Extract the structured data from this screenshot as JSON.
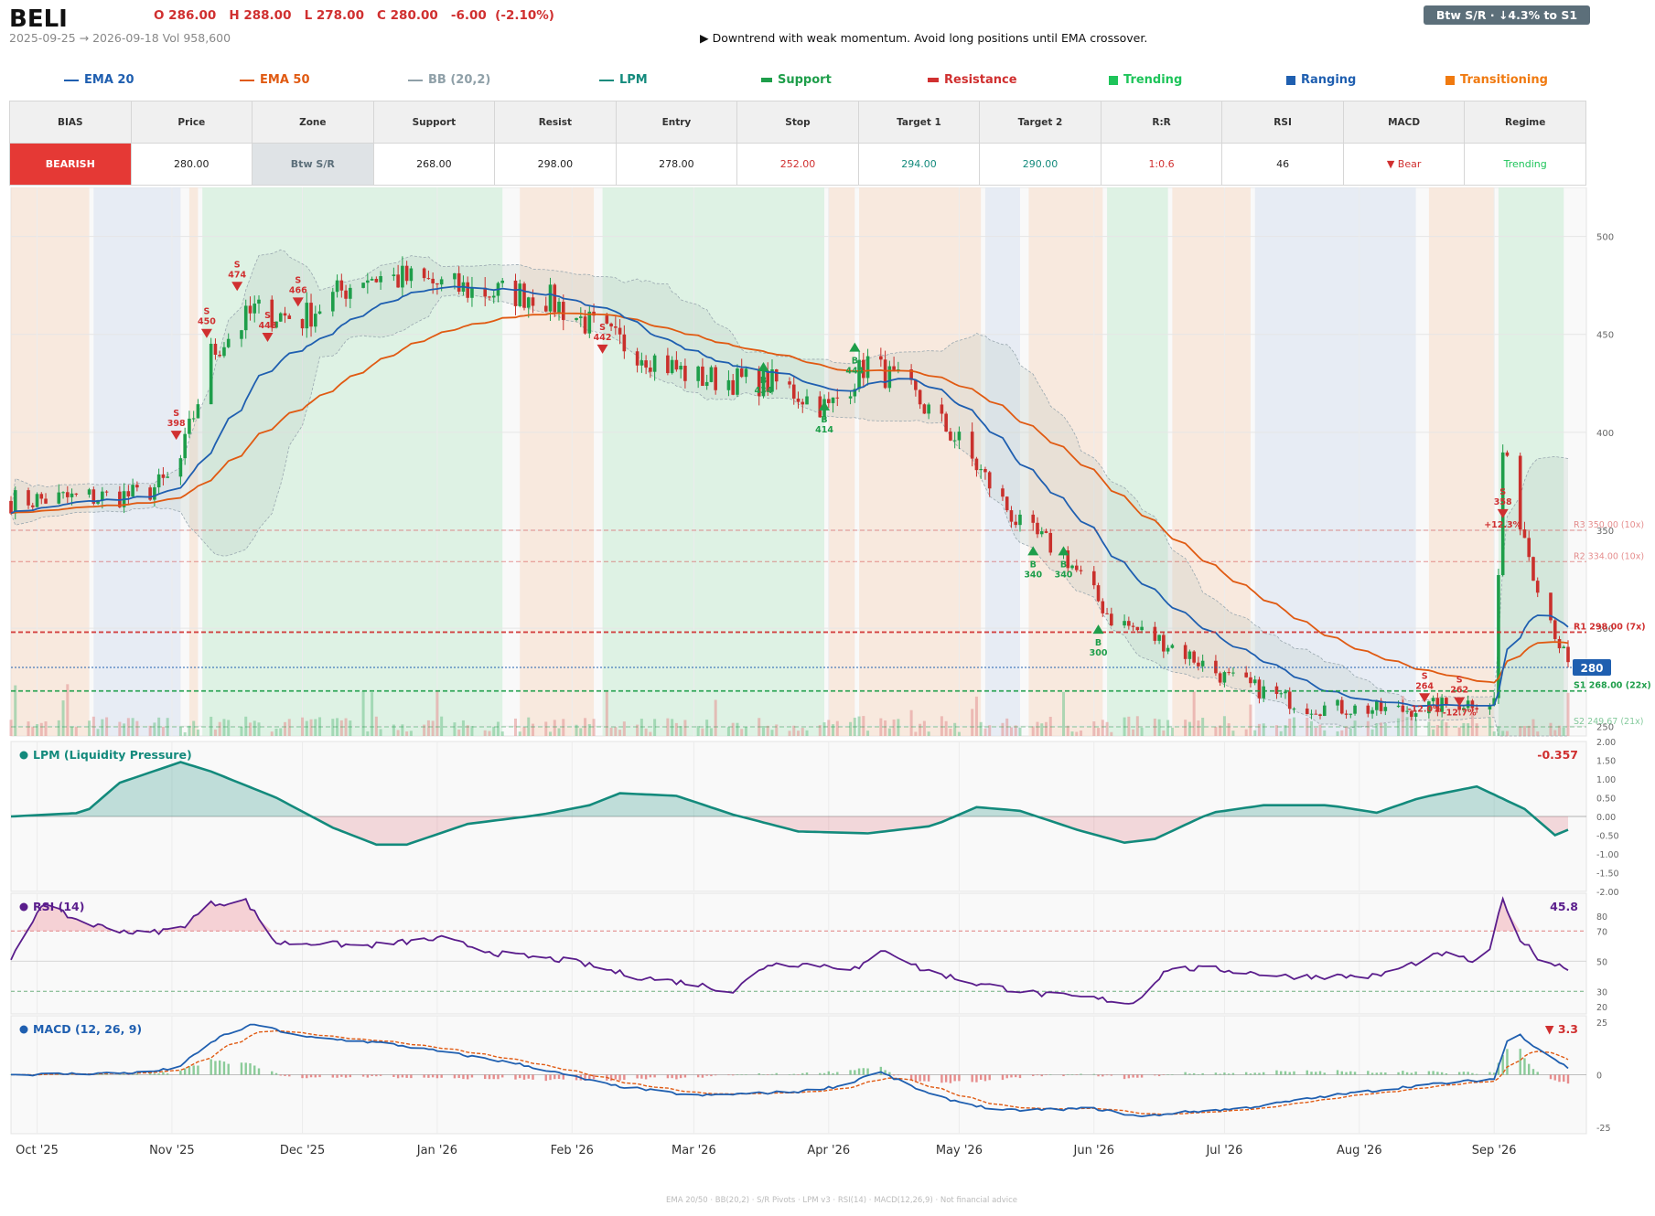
{
  "header": {
    "ticker": "BELI",
    "ohlc": "O 286.00   H 288.00   L 278.00   C 280.00   -6.00  (-2.10%)",
    "range": "2025-09-25 → 2026-09-18   Vol 958,600",
    "note": "▶  Downtrend with weak momentum. Avoid long positions until EMA crossover.",
    "badge": "Btw S/R  ·  ↓4.3% to S1"
  },
  "legend": [
    {
      "label": "EMA 20",
      "color": "#1f5fb0",
      "kind": "line",
      "x": 70
    },
    {
      "label": "EMA 50",
      "color": "#e05a12",
      "kind": "line",
      "x": 262
    },
    {
      "label": "BB (20,2)",
      "color": "#8fa0a8",
      "kind": "line",
      "x": 446
    },
    {
      "label": "LPM",
      "color": "#138a7c",
      "kind": "line",
      "x": 655
    },
    {
      "label": "Support",
      "color": "#1e9e4a",
      "kind": "bar",
      "x": 832
    },
    {
      "label": "Resistance",
      "color": "#d03030",
      "kind": "bar",
      "x": 1014
    },
    {
      "label": "Trending",
      "color": "#1ec45a",
      "kind": "square",
      "x": 1212
    },
    {
      "label": "Ranging",
      "color": "#1f5fb0",
      "kind": "square",
      "x": 1406
    },
    {
      "label": "Transitioning",
      "color": "#f07a10",
      "kind": "square",
      "x": 1580
    }
  ],
  "stats": {
    "headers": [
      "BIAS",
      "Price",
      "Zone",
      "Support",
      "Resist",
      "Entry",
      "Stop",
      "Target 1",
      "Target 2",
      "R:R",
      "RSI",
      "MACD",
      "Regime"
    ],
    "values": [
      "BEARISH",
      "280.00",
      "Btw S/R",
      "268.00",
      "298.00",
      "278.00",
      "252.00",
      "294.00",
      "290.00",
      "1:0.6",
      "46",
      "▼ Bear",
      "Trending"
    ]
  },
  "colors": {
    "up": "#1e9e4a",
    "down": "#c9302c",
    "ema20": "#1f5fb0",
    "ema50": "#e05a12",
    "lpm": "#138a7c",
    "rsi": "#5a1d8c",
    "macd": "#1f5fb0",
    "signal": "#e05a12",
    "trend": "#c8ecd4",
    "range": "#d8e2f0",
    "trans": "#f8dcc8"
  },
  "chart_data": {
    "type": "candlestick",
    "x_ticks": [
      "Oct '25",
      "Nov '25",
      "Dec '25",
      "Jan '26",
      "Feb '26",
      "Mar '26",
      "Apr '26",
      "May '26",
      "Jun '26",
      "Jul '26",
      "Aug '26",
      "Sep '26"
    ],
    "price_axis": {
      "ylim": [
        245,
        525
      ],
      "ticks": [
        250,
        300,
        350,
        400,
        450,
        500
      ]
    },
    "close_anchors": [
      [
        "2025-09-25",
        365
      ],
      [
        "2025-10-25",
        368
      ],
      [
        "2025-11-02",
        378
      ],
      [
        "2025-11-10",
        440
      ],
      [
        "2025-11-20",
        462
      ],
      [
        "2025-12-01",
        458
      ],
      [
        "2025-12-15",
        480
      ],
      [
        "2025-12-25",
        478
      ],
      [
        "2026-01-10",
        472
      ],
      [
        "2026-01-25",
        470
      ],
      [
        "2026-02-10",
        448
      ],
      [
        "2026-03-01",
        428
      ],
      [
        "2026-03-20",
        425
      ],
      [
        "2026-04-01",
        412
      ],
      [
        "2026-04-10",
        436
      ],
      [
        "2026-04-20",
        420
      ],
      [
        "2026-05-01",
        395
      ],
      [
        "2026-05-15",
        352
      ],
      [
        "2026-05-25",
        338
      ],
      [
        "2026-06-05",
        305
      ],
      [
        "2026-06-20",
        290
      ],
      [
        "2026-07-01",
        275
      ],
      [
        "2026-07-20",
        260
      ],
      [
        "2026-08-10",
        258
      ],
      [
        "2026-08-25",
        262
      ],
      [
        "2026-09-01",
        263
      ],
      [
        "2026-09-03",
        390
      ],
      [
        "2026-09-10",
        330
      ],
      [
        "2026-09-18",
        280
      ]
    ],
    "levels": [
      {
        "label": "R3 350.00 (10x)",
        "value": 350,
        "kind": "resistance"
      },
      {
        "label": "R2 334.00 (10x)",
        "value": 334,
        "kind": "resistance"
      },
      {
        "label": "R1 298.00 (7x)",
        "value": 298,
        "kind": "resistance"
      },
      {
        "label": "S1 268.00 (22x)",
        "value": 268,
        "kind": "support"
      },
      {
        "label": "S2 249.67 (21x)",
        "value": 249.67,
        "kind": "support"
      }
    ],
    "last_price": {
      "value": 280,
      "label": "280"
    },
    "signals": [
      {
        "date": "2025-11-02",
        "side": "S",
        "price": 398,
        "text": "398"
      },
      {
        "date": "2025-11-09",
        "side": "S",
        "price": 450,
        "text": "450"
      },
      {
        "date": "2025-11-16",
        "side": "S",
        "price": 474,
        "text": "474"
      },
      {
        "date": "2025-11-23",
        "side": "S",
        "price": 448,
        "text": "448"
      },
      {
        "date": "2025-11-30",
        "side": "S",
        "price": 466,
        "text": "466"
      },
      {
        "date": "2026-02-08",
        "side": "S",
        "price": 442,
        "text": "442"
      },
      {
        "date": "2026-03-17",
        "side": "B",
        "price": 434,
        "text": "434"
      },
      {
        "date": "2026-03-31",
        "side": "B",
        "price": 414,
        "text": "414"
      },
      {
        "date": "2026-04-07",
        "side": "B",
        "price": 444,
        "text": "444"
      },
      {
        "date": "2026-05-18",
        "side": "B",
        "price": 340,
        "text": "340"
      },
      {
        "date": "2026-05-25",
        "side": "B",
        "price": 340,
        "text": "340"
      },
      {
        "date": "2026-06-02",
        "side": "B",
        "price": 300,
        "text": "300"
      },
      {
        "date": "2026-08-16",
        "side": "S",
        "price": 264,
        "text": "264",
        "pct": "-12.0%"
      },
      {
        "date": "2026-08-24",
        "side": "S",
        "price": 262,
        "text": "262",
        "pct": "-12.7%"
      },
      {
        "date": "2026-09-03",
        "side": "S",
        "price": 358,
        "text": "358",
        "pct": "+12.3%"
      }
    ],
    "regimes": [
      [
        "2025-09-25",
        "2025-10-13",
        "trans"
      ],
      [
        "2025-10-14",
        "2025-11-03",
        "range"
      ],
      [
        "2025-11-05",
        "2025-11-07",
        "trans"
      ],
      [
        "2025-11-08",
        "2026-01-16",
        "trend"
      ],
      [
        "2026-01-20",
        "2026-02-06",
        "trans"
      ],
      [
        "2026-02-08",
        "2026-03-31",
        "trend"
      ],
      [
        "2026-04-01",
        "2026-04-07",
        "trans"
      ],
      [
        "2026-04-08",
        "2026-05-06",
        "trans"
      ],
      [
        "2026-05-07",
        "2026-05-15",
        "range"
      ],
      [
        "2026-05-17",
        "2026-06-03",
        "trans"
      ],
      [
        "2026-06-04",
        "2026-06-18",
        "trend"
      ],
      [
        "2026-06-19",
        "2026-07-07",
        "trans"
      ],
      [
        "2026-07-08",
        "2026-08-14",
        "range"
      ],
      [
        "2026-08-17",
        "2026-09-01",
        "trans"
      ],
      [
        "2026-09-02",
        "2026-09-17",
        "trend"
      ]
    ],
    "lpm": {
      "title": "LPM (Liquidity Pressure)",
      "last": "-0.357",
      "ylim": [
        -2,
        2
      ],
      "ticks": [
        -2,
        -1.5,
        -1,
        -0.5,
        0,
        0.5,
        1,
        1.5,
        2
      ],
      "anchors": [
        [
          "2025-09-25",
          0
        ],
        [
          "2025-10-12",
          0.1
        ],
        [
          "2025-10-20",
          0.9
        ],
        [
          "2025-11-03",
          1.45
        ],
        [
          "2025-11-10",
          1.2
        ],
        [
          "2025-11-25",
          0.5
        ],
        [
          "2025-12-08",
          -0.3
        ],
        [
          "2025-12-18",
          -0.75
        ],
        [
          "2025-12-25",
          -0.75
        ],
        [
          "2026-01-08",
          -0.2
        ],
        [
          "2026-01-25",
          0.05
        ],
        [
          "2026-02-05",
          0.3
        ],
        [
          "2026-02-12",
          0.62
        ],
        [
          "2026-02-25",
          0.55
        ],
        [
          "2026-03-10",
          0.05
        ],
        [
          "2026-03-25",
          -0.4
        ],
        [
          "2026-04-10",
          -0.45
        ],
        [
          "2026-04-25",
          -0.25
        ],
        [
          "2026-05-05",
          0.25
        ],
        [
          "2026-05-15",
          0.15
        ],
        [
          "2026-05-28",
          -0.35
        ],
        [
          "2026-06-08",
          -0.7
        ],
        [
          "2026-06-15",
          -0.6
        ],
        [
          "2026-06-28",
          0.1
        ],
        [
          "2026-07-10",
          0.3
        ],
        [
          "2026-07-25",
          0.3
        ],
        [
          "2026-08-05",
          0.1
        ],
        [
          "2026-08-15",
          0.5
        ],
        [
          "2026-08-28",
          0.8
        ],
        [
          "2026-09-08",
          0.2
        ],
        [
          "2026-09-15",
          -0.5
        ],
        [
          "2026-09-18",
          -0.357
        ]
      ]
    },
    "rsi": {
      "title": "RSI (14)",
      "last": "45.8",
      "ylim": [
        15,
        95
      ],
      "ticks": [
        20,
        30,
        50,
        70,
        80
      ],
      "anchors": [
        [
          "2025-09-25",
          50
        ],
        [
          "2025-10-02",
          88
        ],
        [
          "2025-10-12",
          75
        ],
        [
          "2025-10-25",
          68
        ],
        [
          "2025-11-03",
          72
        ],
        [
          "2025-11-10",
          88
        ],
        [
          "2025-11-18",
          90
        ],
        [
          "2025-11-25",
          62
        ],
        [
          "2025-12-05",
          62
        ],
        [
          "2025-12-15",
          60
        ],
        [
          "2026-01-02",
          65
        ],
        [
          "2026-01-15",
          55
        ],
        [
          "2026-02-01",
          50
        ],
        [
          "2026-02-15",
          40
        ],
        [
          "2026-03-01",
          35
        ],
        [
          "2026-03-10",
          30
        ],
        [
          "2026-03-18",
          48
        ],
        [
          "2026-03-28",
          48
        ],
        [
          "2026-04-08",
          45
        ],
        [
          "2026-04-14",
          58
        ],
        [
          "2026-04-22",
          45
        ],
        [
          "2026-05-05",
          35
        ],
        [
          "2026-05-20",
          28
        ],
        [
          "2026-06-02",
          25
        ],
        [
          "2026-06-10",
          22
        ],
        [
          "2026-06-18",
          45
        ],
        [
          "2026-06-28",
          45
        ],
        [
          "2026-07-15",
          40
        ],
        [
          "2026-08-05",
          40
        ],
        [
          "2026-08-20",
          55
        ],
        [
          "2026-08-30",
          48
        ],
        [
          "2026-09-03",
          90
        ],
        [
          "2026-09-06",
          68
        ],
        [
          "2026-09-12",
          50
        ],
        [
          "2026-09-18",
          45.8
        ]
      ]
    },
    "macd": {
      "title": "MACD (12, 26, 9)",
      "last": "▼ 3.3",
      "ylim": [
        -28,
        28
      ],
      "ticks": [
        -25,
        0,
        25
      ],
      "anchors": [
        [
          "2025-09-25",
          0
        ],
        [
          "2025-10-25",
          1
        ],
        [
          "2025-11-02",
          3
        ],
        [
          "2025-11-12",
          18
        ],
        [
          "2025-11-20",
          24
        ],
        [
          "2025-12-01",
          18
        ],
        [
          "2025-12-20",
          15
        ],
        [
          "2026-01-05",
          10
        ],
        [
          "2026-01-20",
          5
        ],
        [
          "2026-02-10",
          -5
        ],
        [
          "2026-03-01",
          -10
        ],
        [
          "2026-03-25",
          -8
        ],
        [
          "2026-04-05",
          -5
        ],
        [
          "2026-04-12",
          2
        ],
        [
          "2026-04-25",
          -10
        ],
        [
          "2026-05-10",
          -17
        ],
        [
          "2026-06-01",
          -16
        ],
        [
          "2026-06-12",
          -20
        ],
        [
          "2026-06-20",
          -18
        ],
        [
          "2026-07-05",
          -16
        ],
        [
          "2026-07-25",
          -10
        ],
        [
          "2026-08-15",
          -5
        ],
        [
          "2026-09-01",
          -2
        ],
        [
          "2026-09-05",
          22
        ],
        [
          "2026-09-10",
          14
        ],
        [
          "2026-09-18",
          3.3
        ]
      ]
    }
  },
  "footer": "EMA 20/50  ·  BB(20,2)  ·  S/R Pivots  ·  LPM v3  ·  RSI(14)  ·  MACD(12,26,9)  ·  Not financial advice"
}
